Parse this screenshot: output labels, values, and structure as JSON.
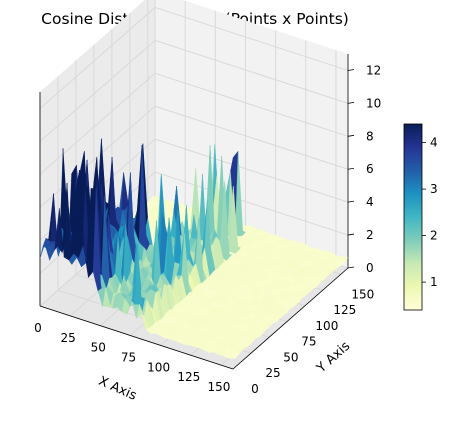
{
  "chart_data": {
    "type": "surface3d",
    "title": "Cosine Distance Matrix (Points x Points)",
    "xlabel": "X Axis",
    "ylabel": "Y Axis",
    "zlabel": "",
    "xlim": [
      0,
      160
    ],
    "ylim": [
      0,
      160
    ],
    "zlim": [
      0,
      13
    ],
    "x_ticks": [
      "0",
      "25",
      "50",
      "75",
      "100",
      "125",
      "150"
    ],
    "y_ticks": [
      "0",
      "25",
      "50",
      "75",
      "100",
      "125",
      "150"
    ],
    "z_ticks": [
      "0",
      "2",
      "4",
      "6",
      "8",
      "10",
      "12"
    ],
    "colormap": "YlGnBu",
    "colorbar": {
      "range": [
        0.4,
        4.4
      ],
      "ticks": [
        "1",
        "2",
        "3",
        "4"
      ]
    },
    "colors": [
      "#ffffd9",
      "#edf8b1",
      "#c7e9b4",
      "#7fcdbb",
      "#41b6c4",
      "#1d91c0",
      "#225ea8",
      "#253494",
      "#081d58"
    ]
  }
}
